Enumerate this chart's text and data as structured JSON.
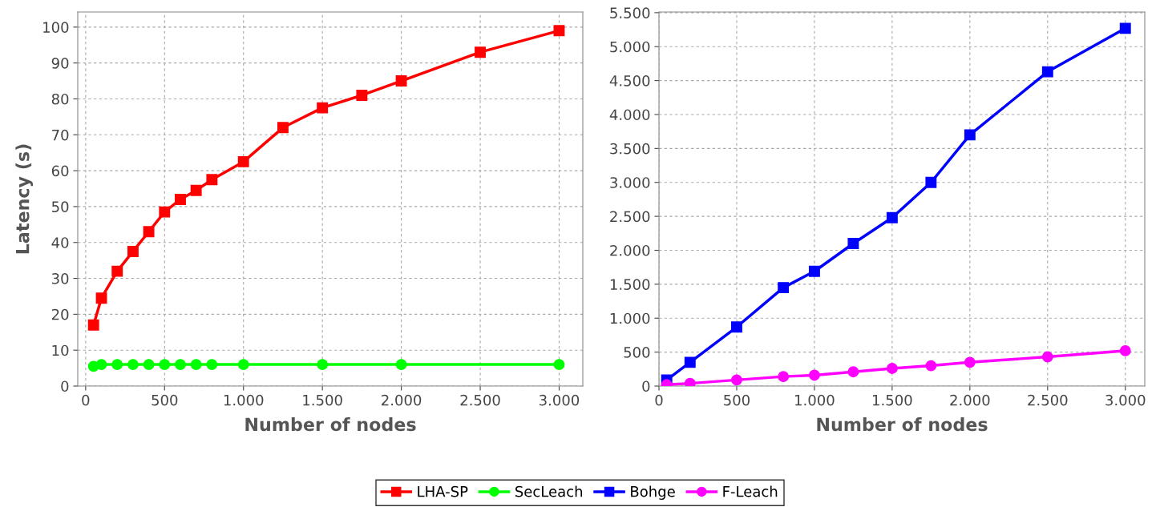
{
  "chart_data": [
    {
      "type": "line",
      "xlabel": "Number of nodes",
      "ylabel": "Latency (s)",
      "xlim": [
        -50,
        3150
      ],
      "ylim": [
        0,
        104.2
      ],
      "xticks": [
        0,
        500,
        {
          "value": 1000,
          "label": "1.000"
        },
        {
          "value": 1500,
          "label": "1.500"
        },
        {
          "value": 2000,
          "label": "2.000"
        },
        {
          "value": 2500,
          "label": "2.500"
        },
        {
          "value": 3000,
          "label": "3.000"
        }
      ],
      "yticks": [
        0,
        10,
        20,
        30,
        40,
        50,
        60,
        70,
        80,
        90,
        100
      ],
      "grid": true,
      "legend": "bottom",
      "series": [
        {
          "name": "LHA-SP",
          "color": "#ff0000",
          "marker": "square",
          "x": [
            50,
            100,
            200,
            300,
            400,
            500,
            600,
            700,
            800,
            1000,
            1250,
            1500,
            1750,
            2000,
            2500,
            3000
          ],
          "values": [
            17,
            24.5,
            32,
            37.5,
            43,
            48.5,
            52,
            54.5,
            57.5,
            62.5,
            72,
            77.5,
            81,
            85,
            93,
            99
          ]
        },
        {
          "name": "SecLeach",
          "color": "#00ff00",
          "marker": "circle",
          "x": [
            50,
            100,
            200,
            300,
            400,
            500,
            600,
            700,
            800,
            1000,
            1500,
            2000,
            3000
          ],
          "values": [
            5.5,
            6,
            6,
            6,
            6,
            6,
            6,
            6,
            6,
            6,
            6,
            6,
            6
          ]
        }
      ]
    },
    {
      "type": "line",
      "xlabel": "Number of nodes",
      "xlim": [
        0,
        3125
      ],
      "ylim": [
        0,
        5510
      ],
      "xticks": [
        0,
        500,
        {
          "value": 1000,
          "label": "1.000"
        },
        {
          "value": 1500,
          "label": "1.500"
        },
        {
          "value": 2000,
          "label": "2.000"
        },
        {
          "value": 2500,
          "label": "2.500"
        },
        {
          "value": 3000,
          "label": "3.000"
        }
      ],
      "yticks": [
        0,
        500,
        {
          "value": 1000,
          "label": "1.000"
        },
        {
          "value": 1500,
          "label": "1.500"
        },
        {
          "value": 2000,
          "label": "2.000"
        },
        {
          "value": 2500,
          "label": "2.500"
        },
        {
          "value": 3000,
          "label": "3.000"
        },
        {
          "value": 3500,
          "label": "3.500"
        },
        {
          "value": 4000,
          "label": "4.000"
        },
        {
          "value": 4500,
          "label": "4.500"
        },
        {
          "value": 5000,
          "label": "5.000"
        },
        {
          "value": 5500,
          "label": "5.500"
        }
      ],
      "grid": true,
      "legend": "bottom",
      "series": [
        {
          "name": "Bohge",
          "color": "#0000ff",
          "marker": "square",
          "x": [
            50,
            200,
            500,
            800,
            1000,
            1250,
            1500,
            1750,
            2000,
            2500,
            3000
          ],
          "values": [
            90,
            350,
            870,
            1450,
            1690,
            2100,
            2480,
            3000,
            3700,
            4630,
            5270
          ]
        },
        {
          "name": "F-Leach",
          "color": "#ff00ff",
          "marker": "circle",
          "x": [
            50,
            200,
            500,
            800,
            1000,
            1250,
            1500,
            1750,
            2000,
            2500,
            3000
          ],
          "values": [
            20,
            40,
            90,
            140,
            160,
            210,
            260,
            300,
            350,
            430,
            520
          ]
        }
      ]
    }
  ]
}
